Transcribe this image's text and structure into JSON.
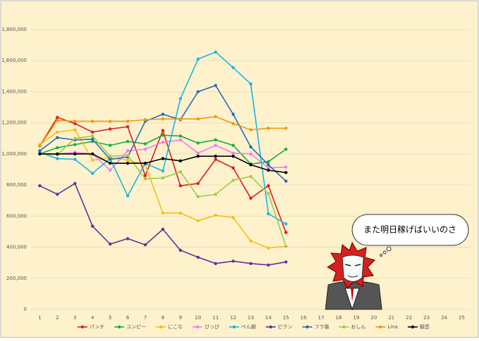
{
  "chart_data": {
    "type": "line",
    "categories": [
      "1",
      "2",
      "3",
      "4",
      "5",
      "6",
      "7",
      "8",
      "9",
      "10",
      "11",
      "12",
      "13",
      "14",
      "15",
      "16",
      "17",
      "18",
      "19",
      "20",
      "21",
      "22",
      "23",
      "24",
      "25"
    ],
    "series": [
      {
        "name": "パンチ",
        "color": "#e41a1c",
        "values": [
          1050000,
          1235000,
          1195000,
          1140000,
          1160000,
          1175000,
          860000,
          1150000,
          795000,
          810000,
          965000,
          910000,
          715000,
          795000,
          495000,
          null,
          null,
          null,
          null,
          null,
          null,
          null,
          null,
          null,
          null
        ]
      },
      {
        "name": "ユンピー",
        "color": "#1aab40",
        "values": [
          1000000,
          1040000,
          1060000,
          1080000,
          1055000,
          1080000,
          1065000,
          1120000,
          1115000,
          1070000,
          1090000,
          1055000,
          935000,
          950000,
          1030000,
          null,
          null,
          null,
          null,
          null,
          null,
          null,
          null,
          null,
          null
        ]
      },
      {
        "name": "にこな",
        "color": "#f2c014",
        "values": [
          1060000,
          1140000,
          1155000,
          960000,
          975000,
          960000,
          930000,
          620000,
          620000,
          570000,
          605000,
          590000,
          440000,
          395000,
          405000,
          null,
          null,
          null,
          null,
          null,
          null,
          null,
          null,
          null,
          null
        ]
      },
      {
        "name": "ぴっぴ",
        "color": "#f07cf0",
        "values": [
          1000000,
          1000000,
          1010000,
          1000000,
          895000,
          1020000,
          1030000,
          1075000,
          1090000,
          1005000,
          1055000,
          1005000,
          1000000,
          910000,
          915000,
          null,
          null,
          null,
          null,
          null,
          null,
          null,
          null,
          null,
          null
        ]
      },
      {
        "name": "ぺん銀",
        "color": "#1ab4e8",
        "values": [
          1010000,
          970000,
          965000,
          875000,
          970000,
          730000,
          940000,
          890000,
          1355000,
          1610000,
          1655000,
          1555000,
          1450000,
          615000,
          550000,
          null,
          null,
          null,
          null,
          null,
          null,
          null,
          null,
          null,
          null
        ]
      },
      {
        "name": "ピクン",
        "color": "#6a2c9a",
        "values": [
          795000,
          740000,
          810000,
          535000,
          420000,
          455000,
          415000,
          515000,
          380000,
          335000,
          295000,
          310000,
          295000,
          285000,
          305000,
          null,
          null,
          null,
          null,
          null,
          null,
          null,
          null,
          null,
          null
        ]
      },
      {
        "name": "フラ猫",
        "color": "#2a6ab8",
        "values": [
          1020000,
          1105000,
          1090000,
          1095000,
          965000,
          980000,
          1210000,
          1255000,
          1220000,
          1400000,
          1440000,
          1255000,
          1045000,
          930000,
          825000,
          null,
          null,
          null,
          null,
          null,
          null,
          null,
          null,
          null,
          null
        ]
      },
      {
        "name": "おしん",
        "color": "#9acd4a",
        "values": [
          1000000,
          995000,
          1100000,
          1115000,
          985000,
          990000,
          840000,
          845000,
          885000,
          725000,
          740000,
          830000,
          855000,
          745000,
          405000,
          null,
          null,
          null,
          null,
          null,
          null,
          null,
          null,
          null,
          null
        ]
      },
      {
        "name": "Lina",
        "color": "#f0980c",
        "values": [
          1050000,
          1215000,
          1210000,
          1210000,
          1210000,
          1210000,
          1220000,
          1225000,
          1225000,
          1225000,
          1240000,
          1195000,
          1155000,
          1165000,
          1165000,
          null,
          null,
          null,
          null,
          null,
          null,
          null,
          null,
          null,
          null
        ]
      },
      {
        "name": "観音",
        "color": "#000000",
        "values": [
          1000000,
          1000000,
          1000000,
          1000000,
          940000,
          940000,
          940000,
          970000,
          955000,
          985000,
          985000,
          985000,
          930000,
          895000,
          880000,
          null,
          null,
          null,
          null,
          null,
          null,
          null,
          null,
          null,
          null
        ]
      }
    ],
    "ylim": [
      0,
      1800000
    ],
    "yticks": [
      0,
      {
        "value": 200000,
        "label": "200,000"
      },
      {
        "value": 400000,
        "label": "400,000"
      },
      {
        "value": 600000,
        "label": "600,000"
      },
      {
        "value": 800000,
        "label": "800,000"
      },
      {
        "value": 1000000,
        "label": "1,000,000"
      },
      {
        "value": 1200000,
        "label": "1,200,000"
      },
      {
        "value": 1400000,
        "label": "1,400,000"
      },
      {
        "value": 1600000,
        "label": "1,600,000"
      },
      {
        "value": 1800000,
        "label": "1,800,000"
      }
    ],
    "grid": true,
    "legend": "bottom",
    "annotation": "また明日稼げばいいのさ"
  }
}
